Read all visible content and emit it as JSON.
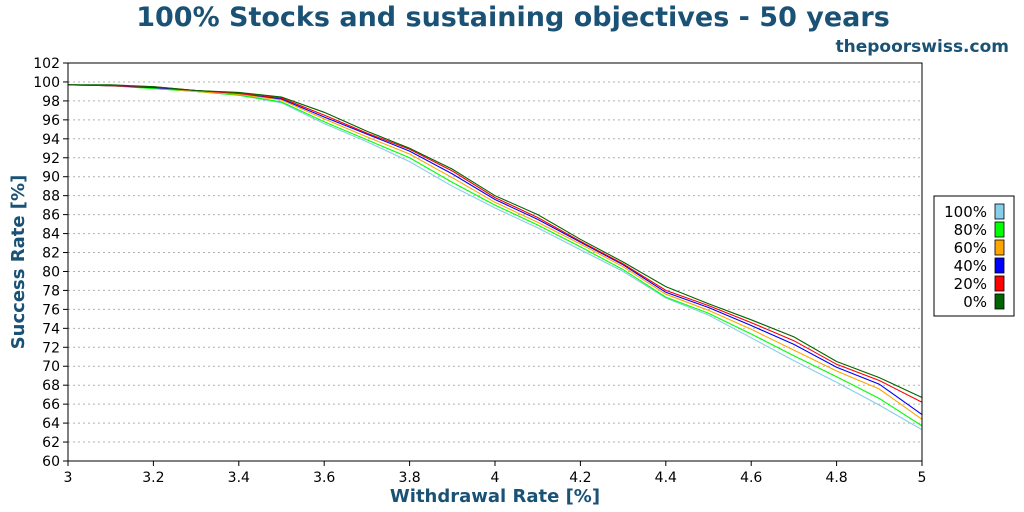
{
  "chart_data": {
    "type": "line",
    "title": "100% Stocks and sustaining objectives - 50 years",
    "subtitle": "thepoorswiss.com",
    "xlabel": "Withdrawal Rate [%]",
    "ylabel": "Success Rate [%]",
    "xlim": [
      3,
      5
    ],
    "ylim": [
      60,
      102
    ],
    "xticks": [
      "3",
      "3.2",
      "3.4",
      "3.6",
      "3.8",
      "4",
      "4.2",
      "4.4",
      "4.6",
      "4.8",
      "5"
    ],
    "yticks": [
      "60",
      "62",
      "64",
      "66",
      "68",
      "70",
      "72",
      "74",
      "76",
      "78",
      "80",
      "82",
      "84",
      "86",
      "88",
      "90",
      "92",
      "94",
      "96",
      "98",
      "100",
      "102"
    ],
    "grid": true,
    "legend_position": "right",
    "x": [
      3.0,
      3.1,
      3.2,
      3.3,
      3.4,
      3.5,
      3.6,
      3.7,
      3.8,
      3.9,
      4.0,
      4.1,
      4.2,
      4.3,
      4.4,
      4.5,
      4.6,
      4.7,
      4.8,
      4.9,
      5.0
    ],
    "series": [
      {
        "name": "100%",
        "color": "#87ceeb",
        "values": [
          99.7,
          99.6,
          99.3,
          99.0,
          98.6,
          97.8,
          95.6,
          93.7,
          91.6,
          89.0,
          86.7,
          84.6,
          82.3,
          80.0,
          77.2,
          75.4,
          73.0,
          70.6,
          68.3,
          65.9,
          63.3
        ]
      },
      {
        "name": "80%",
        "color": "#00ff00",
        "values": [
          99.7,
          99.6,
          99.3,
          99.0,
          98.6,
          97.9,
          95.8,
          93.9,
          92.0,
          89.4,
          87.0,
          84.9,
          82.6,
          80.2,
          77.3,
          75.6,
          73.4,
          71.1,
          68.9,
          66.6,
          63.7
        ]
      },
      {
        "name": "60%",
        "color": "#ffa500",
        "values": [
          99.7,
          99.6,
          99.4,
          99.0,
          98.7,
          98.1,
          96.1,
          94.2,
          92.4,
          89.9,
          87.3,
          85.2,
          82.9,
          80.5,
          77.6,
          75.9,
          73.9,
          71.7,
          69.5,
          67.6,
          64.4
        ]
      },
      {
        "name": "40%",
        "color": "#0000ff",
        "values": [
          99.7,
          99.6,
          99.4,
          99.1,
          98.8,
          98.2,
          96.3,
          94.5,
          92.7,
          90.3,
          87.6,
          85.5,
          83.1,
          80.7,
          77.8,
          76.2,
          74.3,
          72.3,
          69.9,
          68.1,
          64.9
        ]
      },
      {
        "name": "20%",
        "color": "#ff0000",
        "values": [
          99.7,
          99.6,
          99.5,
          99.1,
          98.8,
          98.3,
          96.5,
          94.6,
          92.9,
          90.6,
          87.8,
          85.7,
          83.2,
          80.8,
          78.0,
          76.4,
          74.6,
          72.7,
          70.2,
          68.5,
          66.2
        ]
      },
      {
        "name": "0%",
        "color": "#006400",
        "values": [
          99.7,
          99.7,
          99.5,
          99.1,
          98.9,
          98.4,
          96.8,
          94.8,
          93.0,
          90.8,
          88.0,
          86.0,
          83.4,
          81.0,
          78.4,
          76.6,
          74.9,
          73.1,
          70.5,
          68.8,
          66.7
        ]
      }
    ]
  }
}
